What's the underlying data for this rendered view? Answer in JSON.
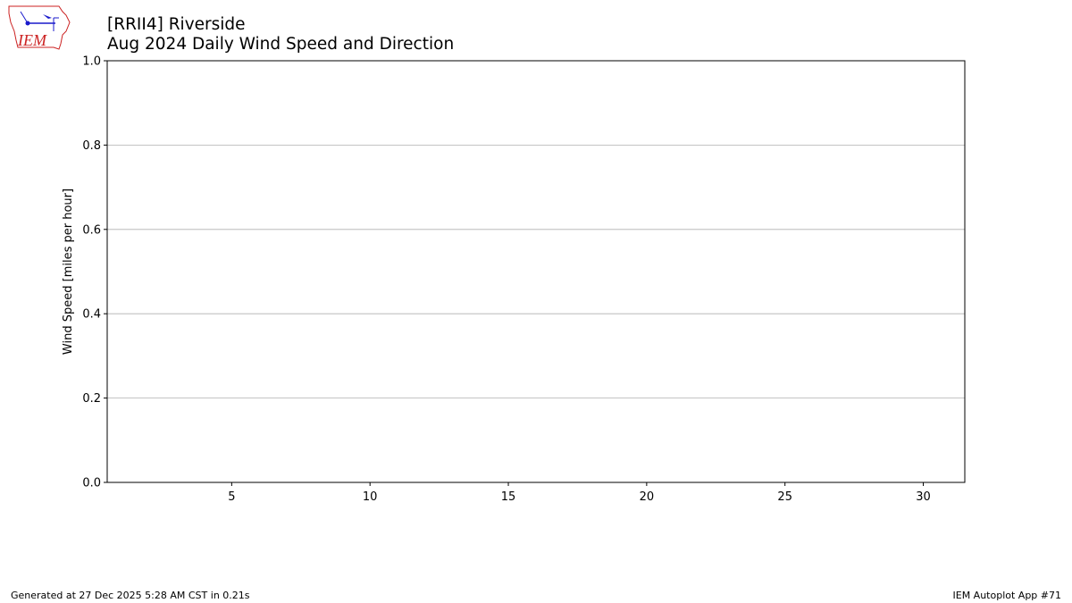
{
  "header": {
    "title_line1": "[RRII4] Riverside",
    "title_line2": "Aug 2024 Daily Wind Speed and Direction",
    "logo_text": "IEM"
  },
  "footer": {
    "generated": "Generated at 27 Dec 2025 5:28 AM CST in 0.21s",
    "app": "IEM Autoplot App #71"
  },
  "chart_data": {
    "type": "bar",
    "title": "[RRII4] Riverside\nAug 2024 Daily Wind Speed and Direction",
    "xlabel": "",
    "ylabel": "Wind Speed [miles per hour]",
    "xlim": [
      0.5,
      31.5
    ],
    "ylim": [
      0,
      1
    ],
    "xticks": [
      5,
      10,
      15,
      20,
      25,
      30
    ],
    "yticks": [
      0.0,
      0.2,
      0.4,
      0.6,
      0.8,
      1.0
    ],
    "ytick_labels": [
      "0.0",
      "0.2",
      "0.4",
      "0.6",
      "0.8",
      "1.0"
    ],
    "grid": "y",
    "series": [],
    "colors": {
      "grid": "#b0b0b0",
      "axes": "#000000",
      "logo_red": "#cc2222",
      "logo_blue": "#1a1acc"
    }
  }
}
